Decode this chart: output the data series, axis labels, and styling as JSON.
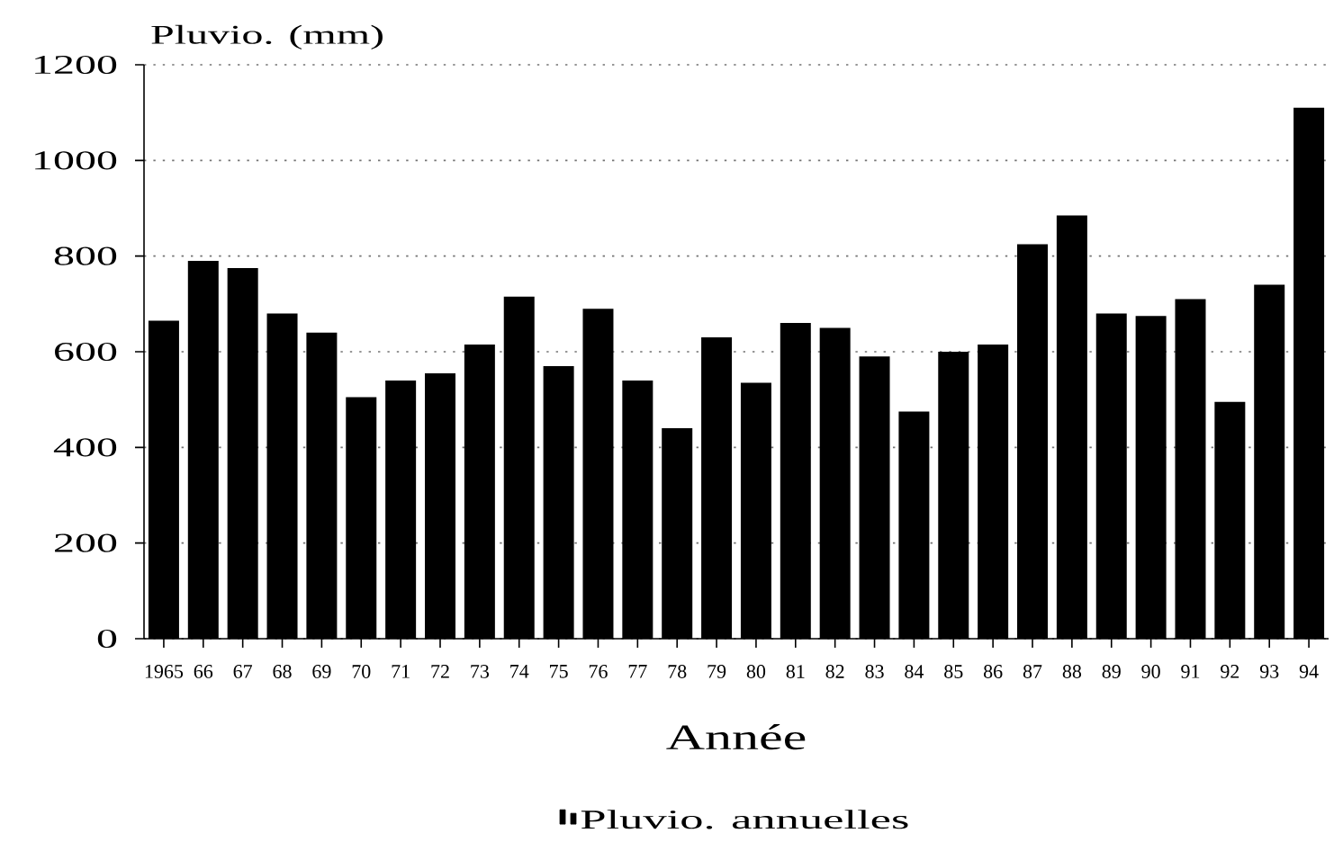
{
  "chart_data": {
    "type": "bar",
    "ylabel": "Pluvio. (mm)",
    "xlabel": "Année",
    "categories": [
      "1965",
      "66",
      "67",
      "68",
      "69",
      "70",
      "71",
      "72",
      "73",
      "74",
      "75",
      "76",
      "77",
      "78",
      "79",
      "80",
      "81",
      "82",
      "83",
      "84",
      "85",
      "86",
      "87",
      "88",
      "89",
      "90",
      "91",
      "92",
      "93",
      "94"
    ],
    "series": [
      {
        "name": "Pluvio. annuelles",
        "color": "#000000",
        "values": [
          665,
          790,
          775,
          680,
          640,
          505,
          540,
          555,
          615,
          715,
          570,
          690,
          540,
          440,
          630,
          535,
          660,
          650,
          590,
          475,
          600,
          615,
          825,
          885,
          680,
          675,
          710,
          495,
          740,
          1110
        ]
      }
    ],
    "ylim": [
      0,
      1200
    ],
    "yticks": [
      0,
      200,
      400,
      600,
      800,
      1000,
      1200
    ],
    "grid": "y",
    "legend": "bottom"
  }
}
